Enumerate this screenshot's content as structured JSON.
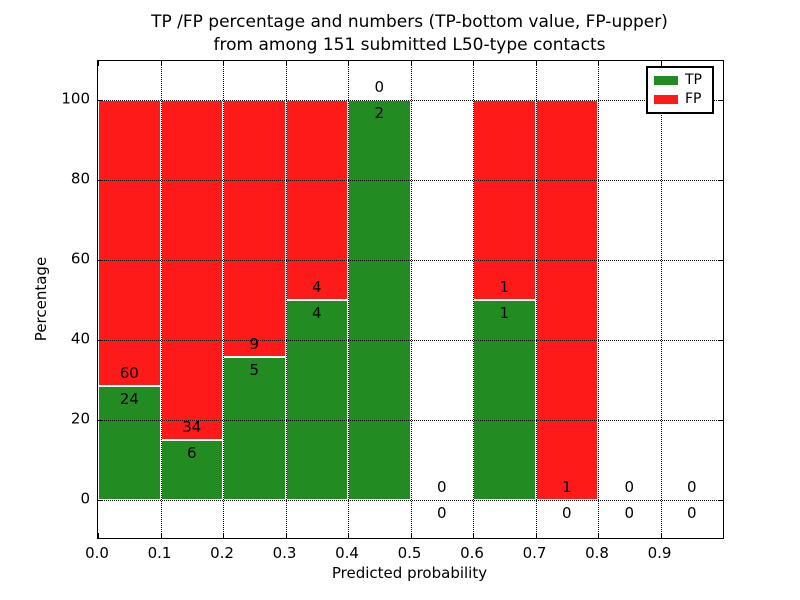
{
  "chart_data": {
    "type": "bar",
    "title_line1": "TP /FP percentage and numbers (TP-bottom value, FP-upper)",
    "title_line2": "from among 151 submitted L50-type contacts",
    "xlabel": "Predicted probability",
    "ylabel": "Percentage",
    "total_submitted": 151,
    "xlim": [
      0.0,
      1.0
    ],
    "ylim": [
      -9.5,
      109.75
    ],
    "x_ticks": [
      "0.0",
      "0.1",
      "0.2",
      "0.3",
      "0.4",
      "0.5",
      "0.6",
      "0.7",
      "0.8",
      "0.9"
    ],
    "y_ticks": [
      0,
      20,
      40,
      60,
      80,
      100
    ],
    "grid": "dotted",
    "colors": {
      "tp": "#228b22",
      "fp": "#ff1a1a",
      "bar_edge": "#ffffff",
      "grid": "#000000",
      "text": "#000000"
    },
    "legend": {
      "position": "upper right",
      "items": [
        {
          "label": "TP",
          "color": "#228b22"
        },
        {
          "label": "FP",
          "color": "#ff1a1a"
        }
      ]
    },
    "bins": [
      {
        "x0": 0.0,
        "x1": 0.1,
        "tp": 24,
        "fp": 60,
        "tp_pct": 28.57,
        "fp_pct": 71.43
      },
      {
        "x0": 0.1,
        "x1": 0.2,
        "tp": 6,
        "fp": 34,
        "tp_pct": 15.0,
        "fp_pct": 85.0
      },
      {
        "x0": 0.2,
        "x1": 0.3,
        "tp": 5,
        "fp": 9,
        "tp_pct": 35.71,
        "fp_pct": 64.29
      },
      {
        "x0": 0.3,
        "x1": 0.4,
        "tp": 4,
        "fp": 4,
        "tp_pct": 50.0,
        "fp_pct": 50.0
      },
      {
        "x0": 0.4,
        "x1": 0.5,
        "tp": 2,
        "fp": 0,
        "tp_pct": 100.0,
        "fp_pct": 0.0
      },
      {
        "x0": 0.5,
        "x1": 0.6,
        "tp": 0,
        "fp": 0,
        "tp_pct": 0.0,
        "fp_pct": 0.0
      },
      {
        "x0": 0.6,
        "x1": 0.7,
        "tp": 1,
        "fp": 1,
        "tp_pct": 50.0,
        "fp_pct": 50.0
      },
      {
        "x0": 0.7,
        "x1": 0.8,
        "tp": 0,
        "fp": 1,
        "tp_pct": 0.0,
        "fp_pct": 100.0
      },
      {
        "x0": 0.8,
        "x1": 0.9,
        "tp": 0,
        "fp": 0,
        "tp_pct": 0.0,
        "fp_pct": 0.0
      },
      {
        "x0": 0.9,
        "x1": 1.0,
        "tp": 0,
        "fp": 0,
        "tp_pct": 0.0,
        "fp_pct": 0.0
      }
    ]
  }
}
